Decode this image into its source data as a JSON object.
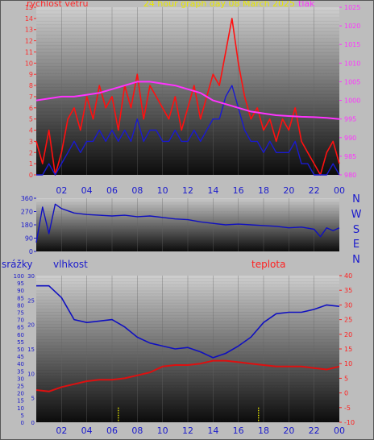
{
  "chart_data": [
    {
      "type": "line",
      "title": "24 hour graph day  08 March 2025",
      "left_label": "rychlost větru",
      "right_label": "tlak",
      "x_ticks": [
        "02",
        "04",
        "06",
        "08",
        "10",
        "12",
        "14",
        "16",
        "18",
        "20",
        "22",
        "00"
      ],
      "y_left_ticks": [
        "0",
        "1",
        "2",
        "3",
        "4",
        "5",
        "6",
        "7",
        "8",
        "9",
        "10",
        "11",
        "12",
        "13",
        "14",
        "15"
      ],
      "y_right_ticks": [
        "980",
        "985",
        "990",
        "995",
        "1000",
        "1005",
        "1010",
        "1015",
        "1020",
        "1025"
      ],
      "ylim_left": [
        0,
        15
      ],
      "ylim_right": [
        980,
        1025
      ],
      "series": [
        {
          "color": "#ff1010",
          "x": [
            0,
            0.5,
            1,
            1.5,
            2,
            2.5,
            3,
            3.5,
            4,
            4.5,
            5,
            5.5,
            6,
            6.5,
            7,
            7.5,
            8,
            8.5,
            9,
            9.5,
            10,
            10.5,
            11,
            11.5,
            12,
            12.5,
            13,
            13.5,
            14,
            14.5,
            15,
            15.5,
            16,
            16.5,
            17,
            17.5,
            18,
            18.5,
            19,
            19.5,
            20,
            20.5,
            21,
            21.5,
            22,
            22.5,
            23,
            23.5,
            24
          ],
          "values": [
            3,
            1,
            4,
            0,
            2,
            5,
            6,
            4,
            7,
            5,
            8,
            6,
            7,
            4,
            8,
            6,
            9,
            5,
            8,
            7,
            6,
            5,
            7,
            4,
            6,
            8,
            5,
            7,
            9,
            8,
            11,
            14,
            10,
            7,
            5,
            6,
            4,
            5,
            3,
            5,
            4,
            6,
            3,
            2,
            1,
            0,
            2,
            3,
            1
          ]
        },
        {
          "color": "#1a1ad0",
          "x": [
            0,
            0.5,
            1,
            1.5,
            2,
            2.5,
            3,
            3.5,
            4,
            4.5,
            5,
            5.5,
            6,
            6.5,
            7,
            7.5,
            8,
            8.5,
            9,
            9.5,
            10,
            10.5,
            11,
            11.5,
            12,
            12.5,
            13,
            13.5,
            14,
            14.5,
            15,
            15.5,
            16,
            16.5,
            17,
            17.5,
            18,
            18.5,
            19,
            19.5,
            20,
            20.5,
            21,
            21.5,
            22,
            22.5,
            23,
            23.5,
            24
          ],
          "values": [
            0,
            0,
            1,
            0,
            1,
            2,
            3,
            2,
            3,
            3,
            4,
            3,
            4,
            3,
            4,
            3,
            5,
            3,
            4,
            4,
            3,
            3,
            4,
            3,
            3,
            4,
            3,
            4,
            5,
            5,
            7,
            8,
            6,
            4,
            3,
            3,
            2,
            3,
            2,
            2,
            2,
            3,
            1,
            1,
            0,
            0,
            0,
            1,
            0
          ]
        },
        {
          "color": "#ff33ff",
          "x": [
            0,
            1,
            2,
            3,
            4,
            5,
            6,
            7,
            8,
            9,
            10,
            11,
            12,
            13,
            14,
            15,
            16,
            17,
            18,
            19,
            20,
            21,
            22,
            23,
            24
          ],
          "values": [
            1000,
            1000.5,
            1001,
            1001,
            1001.5,
            1002,
            1003,
            1004,
            1005,
            1005,
            1004.5,
            1004,
            1003,
            1002,
            1000,
            999,
            998,
            997,
            996.5,
            996,
            995.8,
            995.6,
            995.5,
            995.3,
            995
          ]
        }
      ]
    },
    {
      "type": "line",
      "title": "",
      "right_labels": [
        "N",
        "W",
        "S",
        "E",
        "N"
      ],
      "y_ticks": [
        "0",
        "90",
        "180",
        "270",
        "360"
      ],
      "ylim": [
        0,
        360
      ],
      "series": [
        {
          "color": "#1010c0",
          "x": [
            0,
            0.5,
            1,
            1.5,
            2,
            3,
            4,
            5,
            6,
            7,
            8,
            9,
            10,
            11,
            12,
            13,
            14,
            15,
            16,
            17,
            18,
            19,
            20,
            21,
            22,
            22.5,
            23,
            23.5,
            24
          ],
          "values": [
            60,
            300,
            120,
            320,
            290,
            260,
            250,
            245,
            240,
            245,
            235,
            240,
            230,
            220,
            215,
            200,
            190,
            180,
            185,
            180,
            175,
            170,
            160,
            165,
            150,
            100,
            160,
            140,
            160
          ]
        }
      ]
    },
    {
      "type": "line",
      "title": "",
      "labels": [
        "srážky",
        "vlhkost",
        "teplota"
      ],
      "x_ticks": [
        "02",
        "04",
        "06",
        "08",
        "10",
        "12",
        "14",
        "16",
        "18",
        "20",
        "22",
        "00"
      ],
      "y_left_ticks": [
        "0",
        "5",
        "10",
        "15",
        "20",
        "25",
        "30",
        "35",
        "40",
        "45",
        "50",
        "55",
        "60",
        "65",
        "70",
        "75",
        "80",
        "85",
        "90",
        "95",
        "100"
      ],
      "y_mid_ticks": [
        "0",
        "5",
        "10",
        "15",
        "20",
        "25",
        "30"
      ],
      "y_right_ticks": [
        "-10",
        "-5",
        "0",
        "5",
        "10",
        "15",
        "20",
        "25",
        "30",
        "35",
        "40"
      ],
      "series": [
        {
          "color": "#1010c0",
          "x": [
            0,
            1,
            2,
            3,
            4,
            5,
            6,
            7,
            8,
            9,
            10,
            11,
            12,
            13,
            14,
            15,
            16,
            17,
            18,
            19,
            20,
            21,
            22,
            23,
            24
          ],
          "values": [
            93,
            93,
            85,
            70,
            68,
            69,
            70,
            65,
            58,
            54,
            52,
            50,
            51,
            48,
            44,
            47,
            52,
            58,
            68,
            74,
            75,
            75,
            77,
            80,
            79
          ]
        },
        {
          "color": "#dd1010",
          "x": [
            0,
            1,
            2,
            3,
            4,
            5,
            6,
            7,
            8,
            9,
            10,
            11,
            12,
            13,
            14,
            15,
            16,
            17,
            18,
            19,
            20,
            21,
            22,
            23,
            24
          ],
          "values": [
            1,
            0.5,
            2,
            3,
            4,
            4.5,
            4.5,
            5,
            6,
            7,
            9,
            9.5,
            9.5,
            10,
            11,
            11,
            10.5,
            10,
            9.5,
            9,
            9,
            9,
            8.5,
            8,
            9
          ]
        },
        {
          "color": "#e6e600",
          "x": [
            6.5,
            17.6
          ],
          "values": [
            3,
            3
          ]
        }
      ]
    }
  ]
}
